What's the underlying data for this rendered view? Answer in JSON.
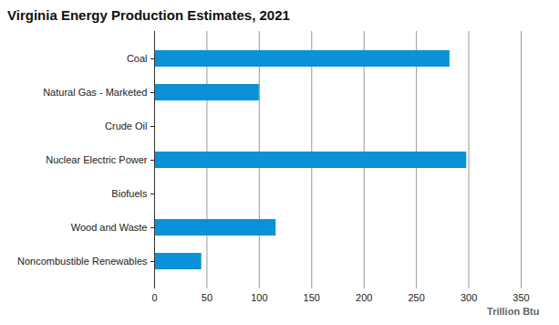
{
  "chart_data": {
    "type": "bar",
    "title": "Virginia Energy Production Estimates, 2021",
    "orientation": "horizontal",
    "categories": [
      "Coal",
      "Natural Gas - Marketed",
      "Crude Oil",
      "Nuclear Electric Power",
      "Biofuels",
      "Wood and Waste",
      "Noncombustible Renewables"
    ],
    "values": [
      282,
      100,
      0,
      298,
      0,
      116,
      45
    ],
    "color": "#0a91d8",
    "x_label": "Trillion Btu",
    "xlim": [
      0,
      350
    ],
    "xticks": [
      0,
      50,
      100,
      150,
      200,
      250,
      300,
      350
    ],
    "grid": true
  }
}
